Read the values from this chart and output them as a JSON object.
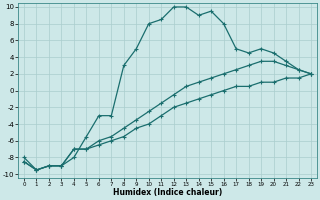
{
  "xlabel": "Humidex (Indice chaleur)",
  "ylabel": "",
  "bg_color": "#cde8e8",
  "grid_color": "#aacece",
  "line_color": "#1a6e6e",
  "xlim": [
    -0.5,
    23.5
  ],
  "ylim": [
    -10.5,
    10.5
  ],
  "xticks": [
    0,
    1,
    2,
    3,
    4,
    5,
    6,
    7,
    8,
    9,
    10,
    11,
    12,
    13,
    14,
    15,
    16,
    17,
    18,
    19,
    20,
    21,
    22,
    23
  ],
  "yticks": [
    -10,
    -8,
    -6,
    -4,
    -2,
    0,
    2,
    4,
    6,
    8,
    10
  ],
  "curve1_x": [
    0,
    1,
    2,
    3,
    4,
    5,
    6,
    7,
    8,
    9,
    10,
    11,
    12,
    13,
    14,
    15,
    16,
    17,
    18,
    19,
    20,
    21,
    22,
    23
  ],
  "curve1_y": [
    -8,
    -9.5,
    -9,
    -9,
    -8,
    -5.5,
    -3,
    -3,
    3,
    5,
    8,
    8.5,
    10,
    10,
    9,
    9.5,
    8,
    5,
    4.5,
    5,
    4.5,
    3.5,
    2.5,
    2
  ],
  "curve2_x": [
    0,
    1,
    2,
    3,
    4,
    5,
    6,
    7,
    8,
    9,
    10,
    11,
    12,
    13,
    14,
    15,
    16,
    17,
    18,
    19,
    20,
    21,
    22,
    23
  ],
  "curve2_y": [
    -8.5,
    -9.5,
    -9,
    -9,
    -7,
    -7,
    -6,
    -5.5,
    -4.5,
    -3.5,
    -2.5,
    -1.5,
    -0.5,
    0.5,
    1,
    1.5,
    2,
    2.5,
    3,
    3.5,
    3.5,
    3,
    2.5,
    2
  ],
  "curve3_x": [
    0,
    1,
    2,
    3,
    4,
    5,
    6,
    7,
    8,
    9,
    10,
    11,
    12,
    13,
    14,
    15,
    16,
    17,
    18,
    19,
    20,
    21,
    22,
    23
  ],
  "curve3_y": [
    -8.5,
    -9.5,
    -9,
    -9,
    -7,
    -7,
    -6.5,
    -6,
    -5.5,
    -4.5,
    -4,
    -3,
    -2,
    -1.5,
    -1,
    -0.5,
    0,
    0.5,
    0.5,
    1,
    1,
    1.5,
    1.5,
    2
  ],
  "marker": "+",
  "markersize": 3,
  "linewidth": 0.9
}
